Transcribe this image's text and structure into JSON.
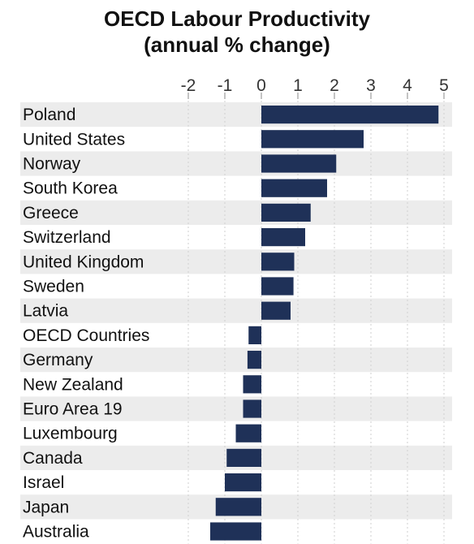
{
  "chart_data": {
    "type": "bar",
    "orientation": "horizontal",
    "title": "OECD Labour Productivity",
    "subtitle": "(annual % change)",
    "xlabel": "",
    "ylabel": "",
    "xlim": [
      -2,
      5
    ],
    "ticks": [
      -2,
      -1,
      0,
      1,
      2,
      3,
      4,
      5
    ],
    "tick_position": "top",
    "bar_color": "#1f3158",
    "band_color": "#ececec",
    "categories": [
      "Poland",
      "United States",
      "Norway",
      "South Korea",
      "Greece",
      "Switzerland",
      "United Kingdom",
      "Sweden",
      "Latvia",
      "OECD Countries",
      "Germany",
      "New Zealand",
      "Euro Area 19",
      "Luxembourg",
      "Canada",
      "Israel",
      "Japan",
      "Australia"
    ],
    "values": [
      4.85,
      2.8,
      2.05,
      1.8,
      1.35,
      1.2,
      0.9,
      0.88,
      0.8,
      -0.35,
      -0.38,
      -0.5,
      -0.5,
      -0.7,
      -0.95,
      -1.0,
      -1.25,
      -1.4
    ]
  }
}
